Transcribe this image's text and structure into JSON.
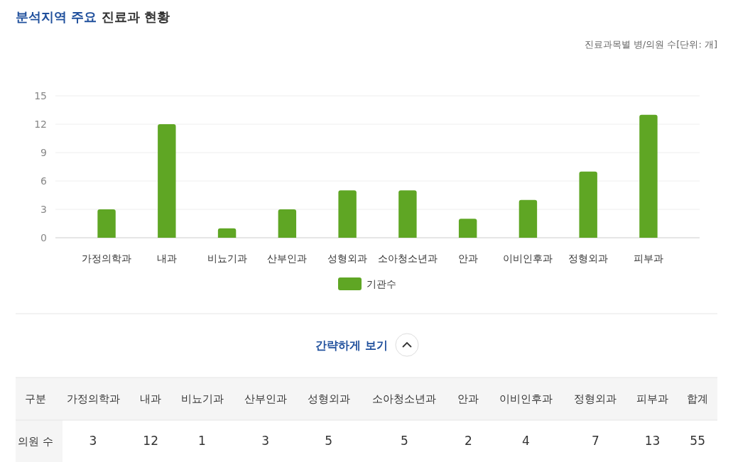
{
  "chart_data": {
    "type": "bar",
    "title": "분석지역 주요 진료과 현황",
    "categories": [
      "가정의학과",
      "내과",
      "비뇨기과",
      "산부인과",
      "성형외과",
      "소아청소년과",
      "안과",
      "이비인후과",
      "정형외과",
      "피부과"
    ],
    "series": [
      {
        "name": "기관수",
        "color": "#5fa624",
        "values": [
          3,
          12,
          1,
          3,
          5,
          5,
          2,
          4,
          7,
          13
        ]
      }
    ],
    "ylim": [
      0,
      15
    ],
    "yticks": [
      0,
      3,
      6,
      9,
      12,
      15
    ],
    "grid": "y",
    "legend": "bottom",
    "data_labels": true,
    "annotations": [
      "진료과목별 병/의원 수[단위: 개]",
      "간략하게 보기",
      "구분",
      "의원 수",
      "합계",
      "55"
    ]
  }
}
